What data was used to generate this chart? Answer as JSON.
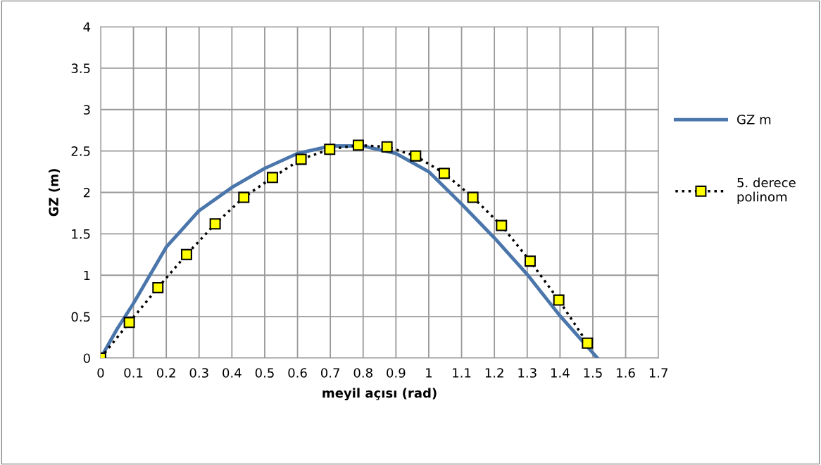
{
  "chart_data": {
    "type": "line",
    "xlabel": "meyil açısı (rad)",
    "ylabel": "GZ (m)",
    "xlim": [
      0,
      1.7
    ],
    "xticks": [
      0,
      0.1,
      0.2,
      0.3,
      0.4,
      0.5,
      0.6,
      0.7,
      0.8,
      0.9,
      1,
      1.1,
      1.2,
      1.3,
      1.4,
      1.5,
      1.6,
      1.7
    ],
    "ylim": [
      0,
      4
    ],
    "yticks": [
      0,
      0.5,
      1,
      1.5,
      2,
      2.5,
      3,
      3.5,
      4
    ],
    "grid": true,
    "legend": "right",
    "series": [
      {
        "name": "GZ m",
        "color": "#4a76ab",
        "line_style": "solid",
        "marker": "none",
        "x": [
          0,
          0.05,
          0.1,
          0.2,
          0.3,
          0.4,
          0.5,
          0.6,
          0.7,
          0.8,
          0.9,
          1.0,
          1.1,
          1.2,
          1.3,
          1.4,
          1.514
        ],
        "values": [
          0,
          0.35,
          0.66,
          1.34,
          1.78,
          2.06,
          2.29,
          2.47,
          2.56,
          2.56,
          2.47,
          2.25,
          1.86,
          1.45,
          1.01,
          0.51,
          0
        ]
      },
      {
        "name": "5. derece polinom",
        "color": "#ffff00",
        "line_style": "dotted",
        "marker": "square",
        "x": [
          0,
          0.0873,
          0.1745,
          0.2618,
          0.3491,
          0.4363,
          0.5236,
          0.6109,
          0.6981,
          0.7854,
          0.8727,
          0.96,
          1.0472,
          1.1345,
          1.2217,
          1.309,
          1.3963,
          1.4835
        ],
        "values": [
          0,
          0.43,
          0.85,
          1.25,
          1.62,
          1.94,
          2.18,
          2.4,
          2.52,
          2.57,
          2.55,
          2.44,
          2.23,
          1.94,
          1.6,
          1.17,
          0.7,
          0.18
        ]
      }
    ]
  }
}
